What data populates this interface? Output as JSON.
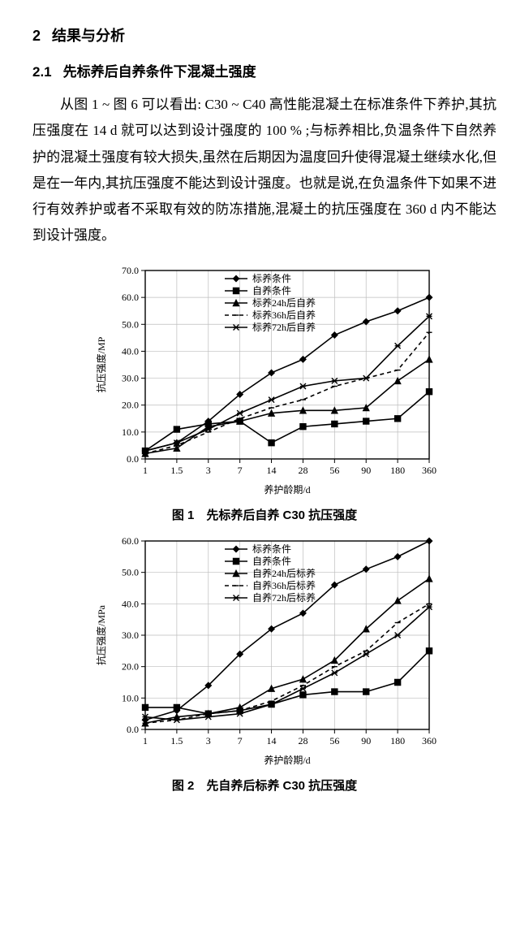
{
  "section": {
    "number": "2",
    "title": "结果与分析"
  },
  "subsection": {
    "number": "2.1",
    "title": "先标养后自养条件下混凝土强度"
  },
  "paragraph": "从图 1 ~ 图 6 可以看出: C30 ~ C40 高性能混凝土在标准条件下养护,其抗压强度在 14 d 就可以达到设计强度的 100 % ;与标养相比,负温条件下自然养护的混凝土强度有较大损失,虽然在后期因为温度回升使得混凝土继续水化,但是在一年内,其抗压强度不能达到设计强度。也就是说,在负温条件下如果不进行有效养护或者不采取有效的防冻措施,混凝土的抗压强度在 360 d 内不能达到设计强度。",
  "chart1": {
    "type": "line",
    "ylabel": "抗压强度/MP",
    "xlabel": "养护龄期/d",
    "ylim": [
      0,
      70
    ],
    "yticks": [
      0.0,
      10.0,
      20.0,
      30.0,
      40.0,
      50.0,
      60.0,
      70.0
    ],
    "xticks": [
      "1",
      "1.5",
      "3",
      "7",
      "14",
      "28",
      "56",
      "90",
      "180",
      "360"
    ],
    "background_color": "#ffffff",
    "grid_color": "#bdbdbd",
    "axis_color": "#000000",
    "line_width": 1.6,
    "marker_size": 5,
    "series": [
      {
        "name": "标养条件",
        "marker": "diamond",
        "dash": "solid",
        "color": "#000000",
        "data": [
          3,
          6,
          14,
          24,
          32,
          37,
          46,
          51,
          55,
          60
        ]
      },
      {
        "name": "自养条件",
        "marker": "square",
        "dash": "solid",
        "color": "#000000",
        "data": [
          3,
          11,
          13,
          14,
          6,
          12,
          13,
          14,
          15,
          25
        ]
      },
      {
        "name": "标养24h后自养",
        "marker": "triangle",
        "dash": "solid",
        "color": "#000000",
        "data": [
          2,
          4,
          12,
          14,
          17,
          18,
          18,
          19,
          29,
          37
        ]
      },
      {
        "name": "标养36h后自养",
        "marker": "dash",
        "dash": "dashed",
        "color": "#000000",
        "data": [
          2,
          5,
          10,
          15,
          19,
          22,
          27,
          30,
          33,
          47
        ]
      },
      {
        "name": "标养72h后自养",
        "marker": "star",
        "dash": "solid",
        "color": "#000000",
        "data": [
          3,
          6,
          11,
          17,
          22,
          27,
          29,
          30,
          42,
          53
        ]
      }
    ]
  },
  "caption1": "图 1　先标养后自养 C30 抗压强度",
  "chart2": {
    "type": "line",
    "ylabel": "抗压强度/MPa",
    "xlabel": "养护龄期/d",
    "ylim": [
      0,
      60
    ],
    "yticks": [
      0.0,
      10.0,
      20.0,
      30.0,
      40.0,
      50.0,
      60.0
    ],
    "xticks": [
      "1",
      "1.5",
      "3",
      "7",
      "14",
      "28",
      "56",
      "90",
      "180",
      "360"
    ],
    "background_color": "#ffffff",
    "grid_color": "#bdbdbd",
    "axis_color": "#000000",
    "line_width": 1.6,
    "marker_size": 5,
    "series": [
      {
        "name": "标养条件",
        "marker": "diamond",
        "dash": "solid",
        "color": "#000000",
        "data": [
          3,
          6,
          14,
          24,
          32,
          37,
          46,
          51,
          55,
          60
        ]
      },
      {
        "name": "自养条件",
        "marker": "square",
        "dash": "solid",
        "color": "#000000",
        "data": [
          7,
          7,
          5,
          6,
          8,
          11,
          12,
          12,
          15,
          25
        ]
      },
      {
        "name": "自养24h后标养",
        "marker": "triangle",
        "dash": "solid",
        "color": "#000000",
        "data": [
          2,
          4,
          5,
          7,
          13,
          16,
          22,
          32,
          41,
          48
        ]
      },
      {
        "name": "自养36h后标养",
        "marker": "dash",
        "dash": "dashed",
        "color": "#000000",
        "data": [
          2,
          3,
          5,
          6,
          9,
          14,
          20,
          25,
          34,
          40
        ]
      },
      {
        "name": "自养72h后标养",
        "marker": "star",
        "dash": "solid",
        "color": "#000000",
        "data": [
          4,
          3,
          4,
          5,
          8,
          13,
          18,
          24,
          30,
          39
        ]
      }
    ]
  },
  "caption2": "图 2　先自养后标养 C30 抗压强度"
}
